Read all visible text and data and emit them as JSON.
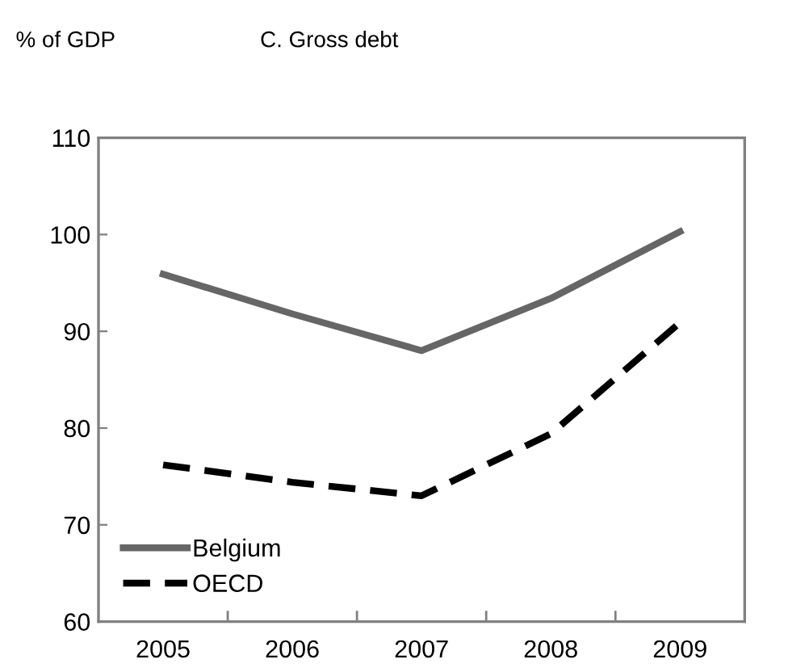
{
  "chart_data": {
    "type": "line",
    "title": "C. Gross debt",
    "ylabel": "% of GDP",
    "categories": [
      "2005",
      "2006",
      "2007",
      "2008",
      "2009"
    ],
    "series": [
      {
        "name": "Belgium",
        "color": "#666666",
        "line_style": "solid",
        "values": [
          95.9,
          91.8,
          88.0,
          93.4,
          100.3
        ]
      },
      {
        "name": "OECD",
        "color": "#000000",
        "line_style": "dashed",
        "values": [
          76.2,
          74.4,
          73.0,
          79.4,
          90.9
        ]
      }
    ],
    "ylim": [
      60,
      110
    ],
    "yticks": [
      60,
      70,
      80,
      90,
      100,
      110
    ],
    "grid": false,
    "legend": "bottom left",
    "marker": "none"
  }
}
